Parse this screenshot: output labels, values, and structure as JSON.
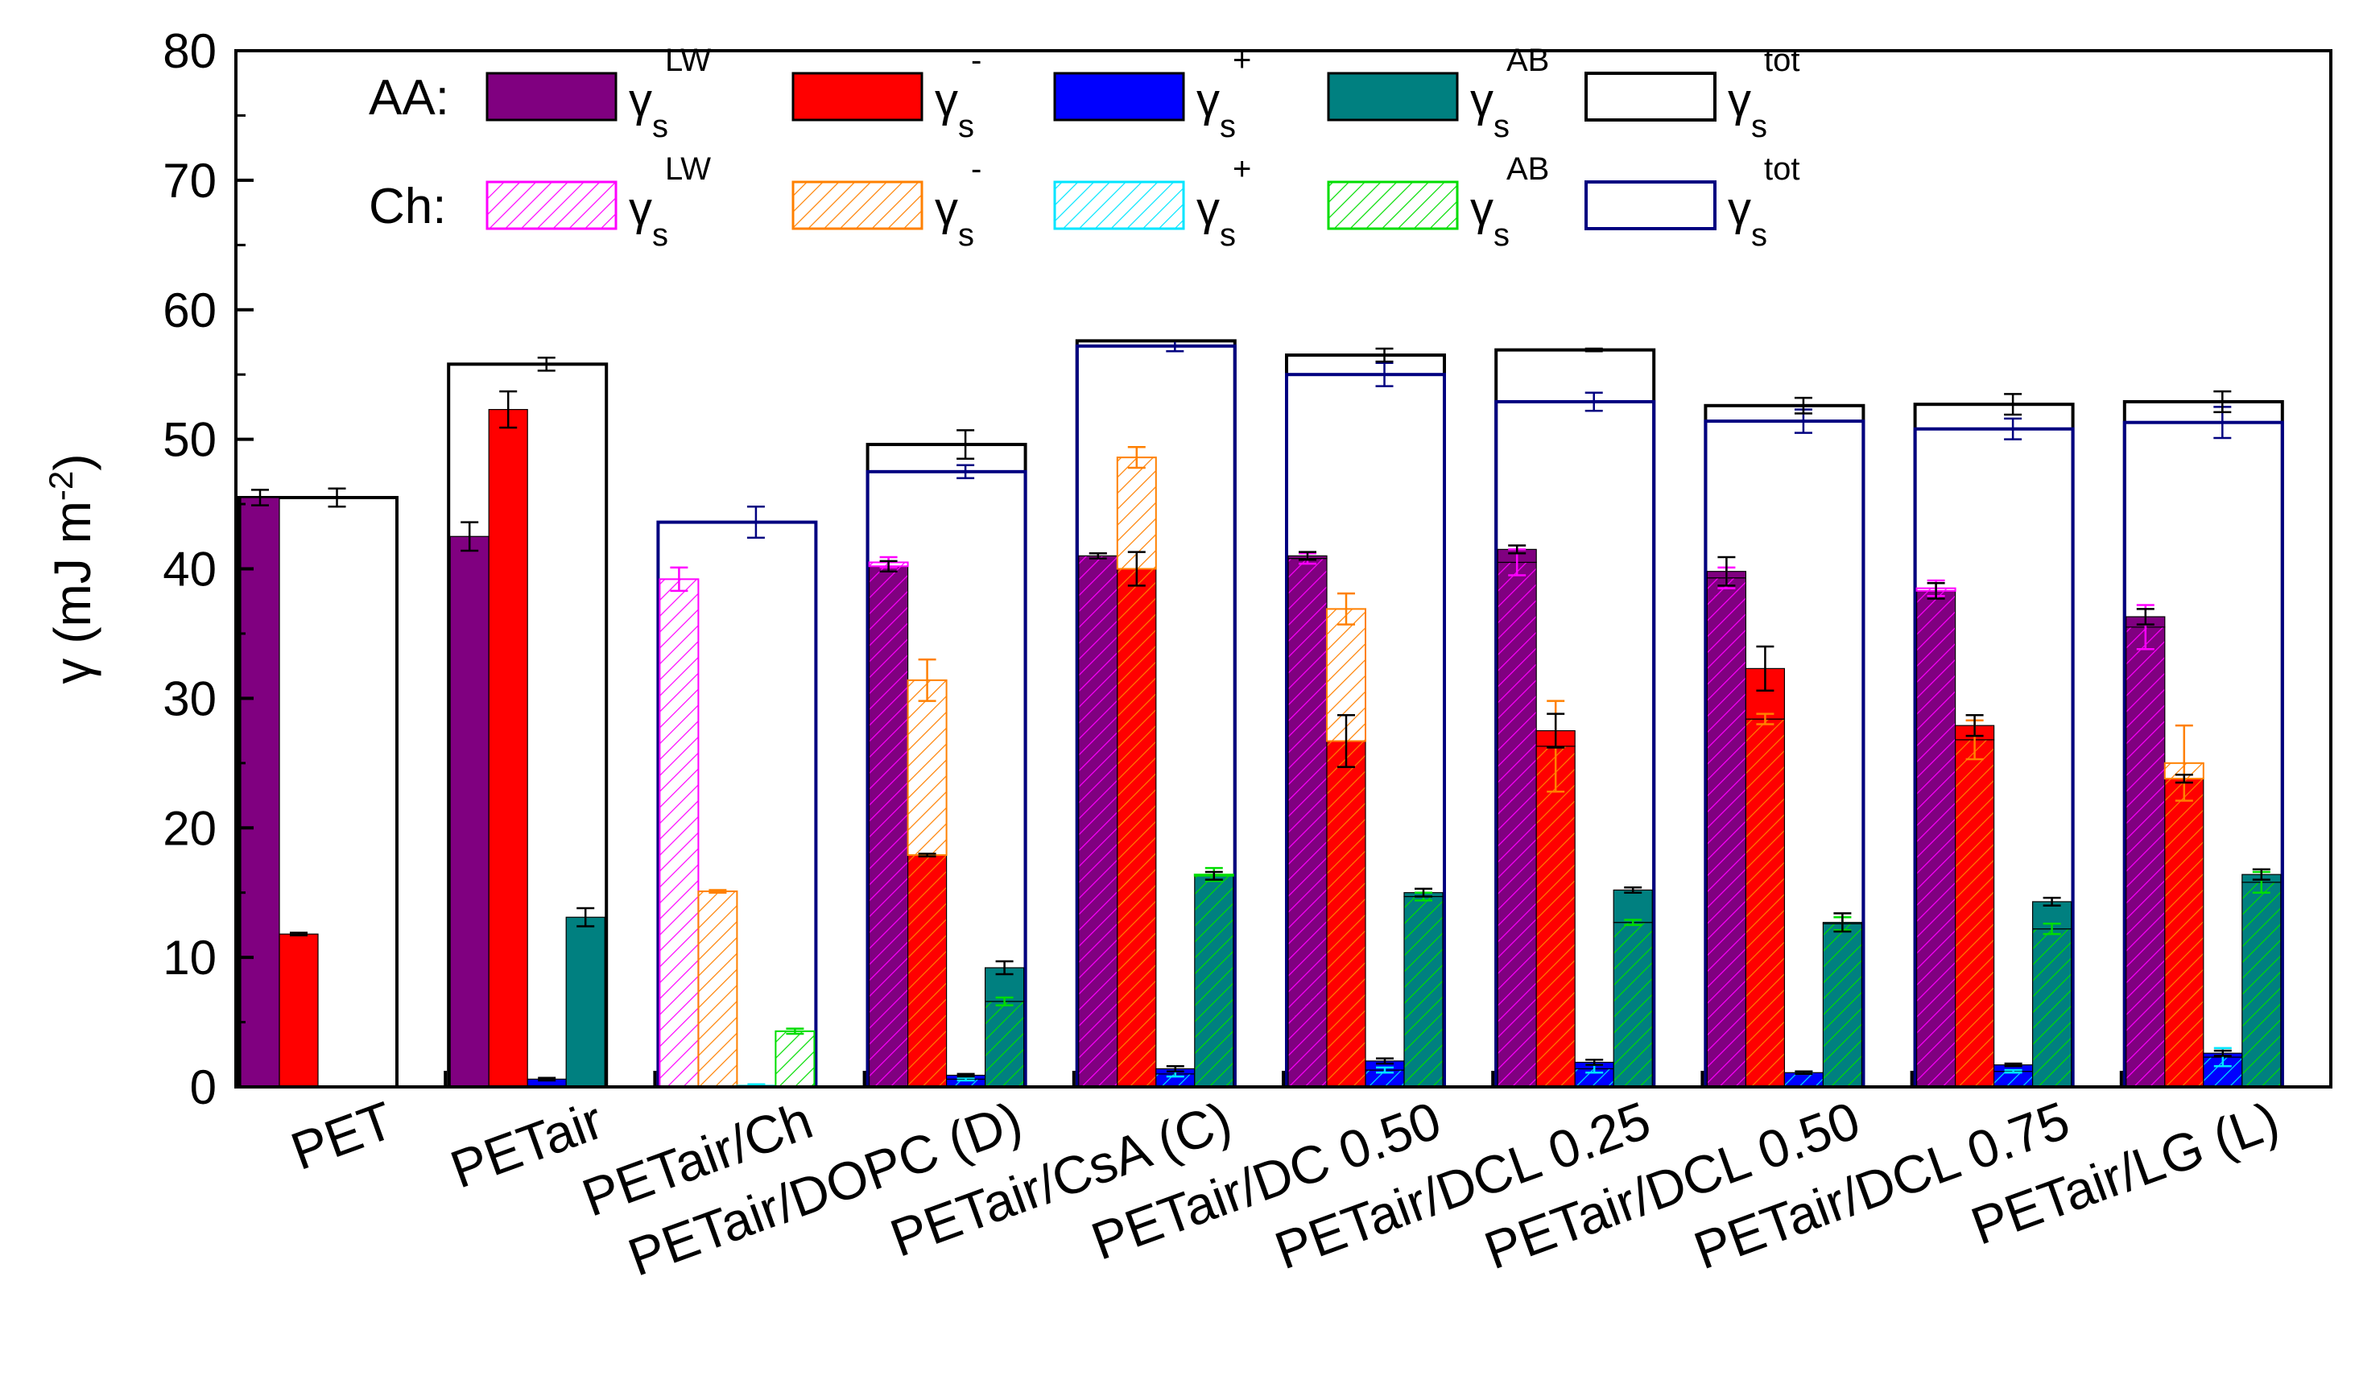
{
  "chart_data": {
    "type": "bar",
    "ylabel": {
      "symbol": "γ",
      "unit": "(mJ m",
      "unit_exp": "-2",
      "unit_close": ")"
    },
    "ylim": [
      0,
      80
    ],
    "yticks": [
      0,
      10,
      20,
      30,
      40,
      50,
      60,
      70,
      80
    ],
    "grid": false,
    "legend_placement": "top",
    "categories": [
      "PET",
      "PETair",
      "PETair/Ch",
      "PETair/DOPC (D)",
      "PETair/CsA (C)",
      "PETair/DC 0.50",
      "PETair/DCL 0.25",
      "PETair/DCL 0.50",
      "PETair/DCL 0.75",
      "PETair/LG (L)"
    ],
    "legend": {
      "AA": {
        "prefix": "AA:",
        "entries": [
          {
            "key": "LW",
            "symbol": "γ",
            "sub": "s",
            "sup": "LW"
          },
          {
            "key": "minus",
            "symbol": "γ",
            "sub": "s",
            "sup": "-"
          },
          {
            "key": "plus",
            "symbol": "γ",
            "sub": "s",
            "sup": "+"
          },
          {
            "key": "AB",
            "symbol": "γ",
            "sub": "s",
            "sup": "AB"
          },
          {
            "key": "tot",
            "symbol": "γ",
            "sub": "s",
            "sup": "tot"
          }
        ]
      },
      "Ch": {
        "prefix": "Ch:",
        "entries": [
          {
            "key": "LW",
            "symbol": "γ",
            "sub": "s",
            "sup": "LW"
          },
          {
            "key": "minus",
            "symbol": "γ",
            "sub": "s",
            "sup": "-"
          },
          {
            "key": "plus",
            "symbol": "γ",
            "sub": "s",
            "sup": "+"
          },
          {
            "key": "AB",
            "symbol": "γ",
            "sub": "s",
            "sup": "AB"
          },
          {
            "key": "tot",
            "symbol": "γ",
            "sub": "s",
            "sup": "tot"
          }
        ]
      }
    },
    "colors": {
      "AA": {
        "LW": "#800080",
        "minus": "#ff0000",
        "plus": "#0000ff",
        "AB": "#008080",
        "tot_outline": "#000000"
      },
      "Ch": {
        "LW": "#ff00ff",
        "minus": "#ff8000",
        "plus": "#00e5ff",
        "AB": "#00dd00",
        "tot_outline": "#000080"
      },
      "errorbar_AA": "#000000"
    },
    "series": {
      "AA": {
        "LW": [
          45.5,
          42.5,
          null,
          40.2,
          41.0,
          41.0,
          41.5,
          39.8,
          38.3,
          36.3
        ],
        "minus": [
          11.8,
          52.3,
          null,
          17.9,
          40.0,
          26.7,
          27.5,
          32.3,
          27.9,
          23.8
        ],
        "plus": [
          null,
          0.6,
          null,
          0.9,
          1.4,
          2.0,
          1.9,
          1.1,
          1.7,
          2.6
        ],
        "AB": [
          null,
          13.1,
          null,
          9.2,
          16.3,
          15.0,
          15.2,
          12.7,
          14.3,
          16.4
        ],
        "tot": [
          45.5,
          55.8,
          null,
          49.6,
          57.6,
          56.5,
          56.9,
          52.6,
          52.7,
          52.9
        ]
      },
      "AA_err": {
        "LW": [
          0.6,
          1.1,
          null,
          0.4,
          0.2,
          0.3,
          0.3,
          1.1,
          0.6,
          0.6
        ],
        "minus": [
          0.1,
          1.4,
          null,
          0.1,
          1.3,
          2.0,
          1.3,
          1.7,
          0.8,
          0.3
        ],
        "plus": [
          null,
          0.1,
          null,
          0.1,
          0.2,
          0.2,
          0.2,
          0.1,
          0.1,
          0.2
        ],
        "AB": [
          null,
          0.7,
          null,
          0.5,
          0.3,
          0.3,
          0.2,
          0.7,
          0.3,
          0.4
        ],
        "tot": [
          0.7,
          0.5,
          null,
          1.1,
          0.0,
          0.5,
          0.1,
          0.6,
          0.8,
          0.8
        ]
      },
      "Ch": {
        "LW": [
          null,
          null,
          39.2,
          40.5,
          41.0,
          40.8,
          40.5,
          39.3,
          38.5,
          35.5
        ],
        "minus": [
          null,
          null,
          15.1,
          31.4,
          48.6,
          36.9,
          26.3,
          28.4,
          26.8,
          25.0
        ],
        "plus": [
          null,
          null,
          0.1,
          0.6,
          1.0,
          1.3,
          1.4,
          1.1,
          1.2,
          2.3
        ],
        "AB": [
          null,
          null,
          4.3,
          6.6,
          16.4,
          14.7,
          12.7,
          12.6,
          12.2,
          15.8
        ],
        "tot": [
          null,
          null,
          43.6,
          47.5,
          57.2,
          55.0,
          52.9,
          51.4,
          50.8,
          51.3
        ]
      },
      "Ch_err": {
        "LW": [
          null,
          null,
          0.9,
          0.4,
          0.2,
          0.4,
          1.0,
          0.8,
          0.6,
          1.7
        ],
        "minus": [
          null,
          null,
          0.1,
          1.6,
          0.8,
          1.2,
          3.5,
          0.4,
          1.5,
          2.9
        ],
        "plus": [
          null,
          null,
          0.1,
          0.1,
          0.2,
          0.2,
          0.3,
          0.1,
          0.1,
          0.7
        ],
        "AB": [
          null,
          null,
          0.2,
          0.3,
          0.5,
          0.3,
          0.2,
          0.5,
          0.4,
          0.8
        ],
        "tot": [
          null,
          null,
          1.2,
          0.5,
          0.4,
          0.9,
          0.7,
          0.9,
          0.8,
          1.2
        ]
      }
    }
  }
}
